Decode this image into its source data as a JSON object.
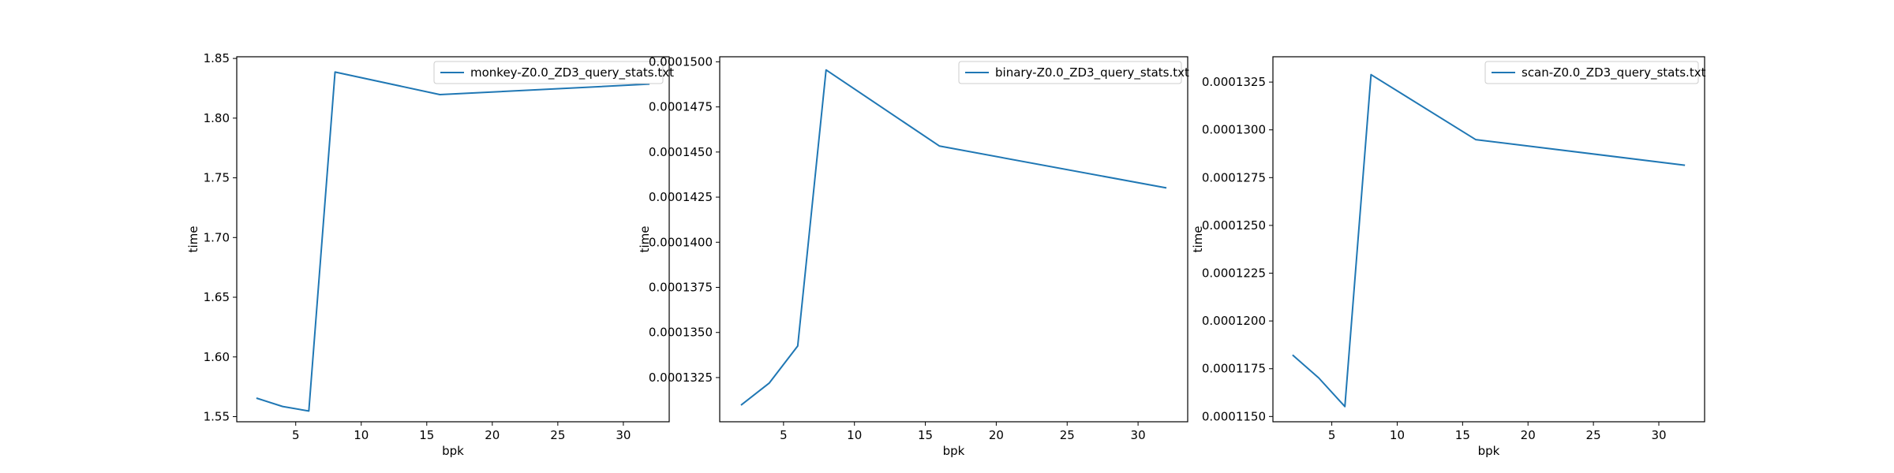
{
  "chart_data": [
    {
      "type": "line",
      "xlabel": "bpk",
      "ylabel": "time",
      "xlim": [
        0.5,
        33.5
      ],
      "ylim": [
        1.5457,
        1.8514
      ],
      "xticks": [
        5,
        10,
        15,
        20,
        25,
        30
      ],
      "xtick_labels": [
        "5",
        "10",
        "15",
        "20",
        "25",
        "30"
      ],
      "yticks": [
        1.55,
        1.6,
        1.65,
        1.7,
        1.75,
        1.8,
        1.85
      ],
      "ytick_labels": [
        "1.55",
        "1.60",
        "1.65",
        "1.70",
        "1.75",
        "1.80",
        "1.85"
      ],
      "legend_position": "upper right",
      "series": [
        {
          "name": "monkey-Z0.0_ZD3_query_stats.txt",
          "color": "#1f77b4",
          "x": [
            2,
            4,
            6,
            8,
            16,
            32
          ],
          "y": [
            1.5655,
            1.5585,
            1.5547,
            1.8386,
            1.8197,
            1.8285
          ]
        }
      ]
    },
    {
      "type": "line",
      "xlabel": "bpk",
      "ylabel": "time",
      "xlim": [
        0.5,
        33.5
      ],
      "ylim": [
        0.00013005,
        0.00015028
      ],
      "xticks": [
        5,
        10,
        15,
        20,
        25,
        30
      ],
      "xtick_labels": [
        "5",
        "10",
        "15",
        "20",
        "25",
        "30"
      ],
      "yticks": [
        0.0001325,
        0.000135,
        0.0001375,
        0.00014,
        0.0001425,
        0.000145,
        0.0001475,
        0.00015
      ],
      "ytick_labels": [
        "0.0001325",
        "0.0001350",
        "0.0001375",
        "0.0001400",
        "0.0001425",
        "0.0001450",
        "0.0001475",
        "0.0001500"
      ],
      "legend_position": "upper right",
      "series": [
        {
          "name": "binary-Z0.0_ZD3_query_stats.txt",
          "color": "#1f77b4",
          "x": [
            2,
            4,
            6,
            8,
            16,
            32
          ],
          "y": [
            0.00013097,
            0.0001322,
            0.00013425,
            0.00014955,
            0.00014533,
            0.00014301
          ]
        }
      ]
    },
    {
      "type": "line",
      "xlabel": "bpk",
      "ylabel": "time",
      "xlim": [
        0.5,
        33.5
      ],
      "ylim": [
        0.000114725,
        0.000133825
      ],
      "xticks": [
        5,
        10,
        15,
        20,
        25,
        30
      ],
      "xtick_labels": [
        "5",
        "10",
        "15",
        "20",
        "25",
        "30"
      ],
      "yticks": [
        0.000115,
        0.0001175,
        0.00012,
        0.0001225,
        0.000125,
        0.0001275,
        0.00013,
        0.0001325
      ],
      "ytick_labels": [
        "0.0001150",
        "0.0001175",
        "0.0001200",
        "0.0001225",
        "0.0001250",
        "0.0001275",
        "0.0001300",
        "0.0001325"
      ],
      "legend_position": "upper right",
      "series": [
        {
          "name": "scan-Z0.0_ZD3_query_stats.txt",
          "color": "#1f77b4",
          "x": [
            2,
            4,
            6,
            8,
            16,
            32
          ],
          "y": [
            0.00011822,
            0.00011702,
            0.00011552,
            0.00013289,
            0.00012949,
            0.00012815
          ]
        }
      ]
    }
  ]
}
